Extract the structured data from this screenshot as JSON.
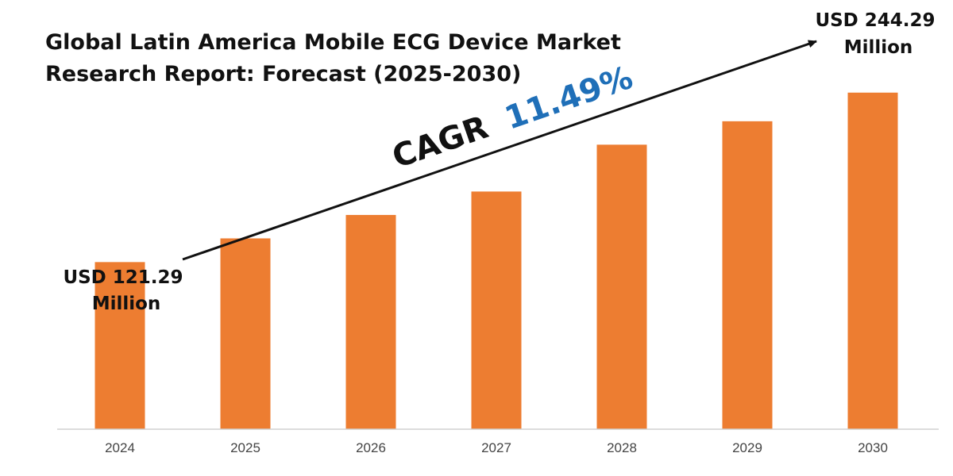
{
  "chart_data": {
    "type": "bar",
    "title_lines": [
      "Global Latin America Mobile ECG Device Market",
      "Research Report: Forecast (2025-2030)"
    ],
    "categories": [
      "2024",
      "2025",
      "2026",
      "2027",
      "2028",
      "2029",
      "2030"
    ],
    "values": [
      121.29,
      138.5,
      155.5,
      172.5,
      206.5,
      223.5,
      244.29
    ],
    "unit": "USD Million",
    "ylim": [
      0,
      300
    ],
    "grid": false,
    "legend": "none",
    "colors": {
      "bar": "#ed7d31",
      "axis": "#d0d0d0",
      "text": "#111111",
      "cagr_value": "#1f6fb8"
    },
    "annotations": {
      "start_label_lines": [
        "USD 121.29",
        "Million"
      ],
      "end_label_lines": [
        "USD 244.29",
        "Million"
      ],
      "cagr_word": "CAGR",
      "cagr_value": "11.49%"
    }
  }
}
